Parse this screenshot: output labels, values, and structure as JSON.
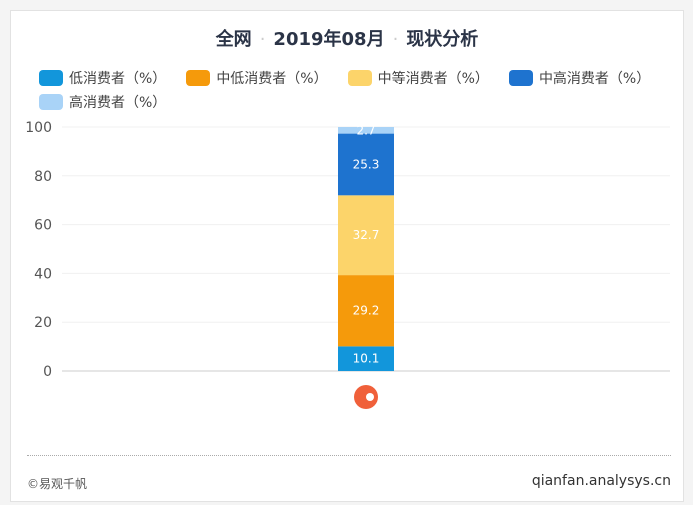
{
  "title": {
    "part1": "全网",
    "part2": "2019年08月",
    "part3": "现状分析"
  },
  "footer": {
    "left": "©易观千帆",
    "right": "qianfan.analysys.cn"
  },
  "chart_data": {
    "type": "bar",
    "stacked": true,
    "categories": [
      ""
    ],
    "ylim": [
      0,
      100
    ],
    "yticks": [
      0,
      20,
      40,
      60,
      80,
      100
    ],
    "grid": true,
    "legend": "top",
    "series": [
      {
        "name": "低消费者（%）",
        "values": [
          10.1
        ],
        "color": "#1296db"
      },
      {
        "name": "中低消费者（%）",
        "values": [
          29.2
        ],
        "color": "#f59a0b"
      },
      {
        "name": "中等消费者（%）",
        "values": [
          32.7
        ],
        "color": "#fcd46a"
      },
      {
        "name": "中高消费者（%）",
        "values": [
          25.3
        ],
        "color": "#1e73cf"
      },
      {
        "name": "高消费者（%）",
        "values": [
          2.7
        ],
        "color": "#a9d3f7"
      }
    ]
  }
}
